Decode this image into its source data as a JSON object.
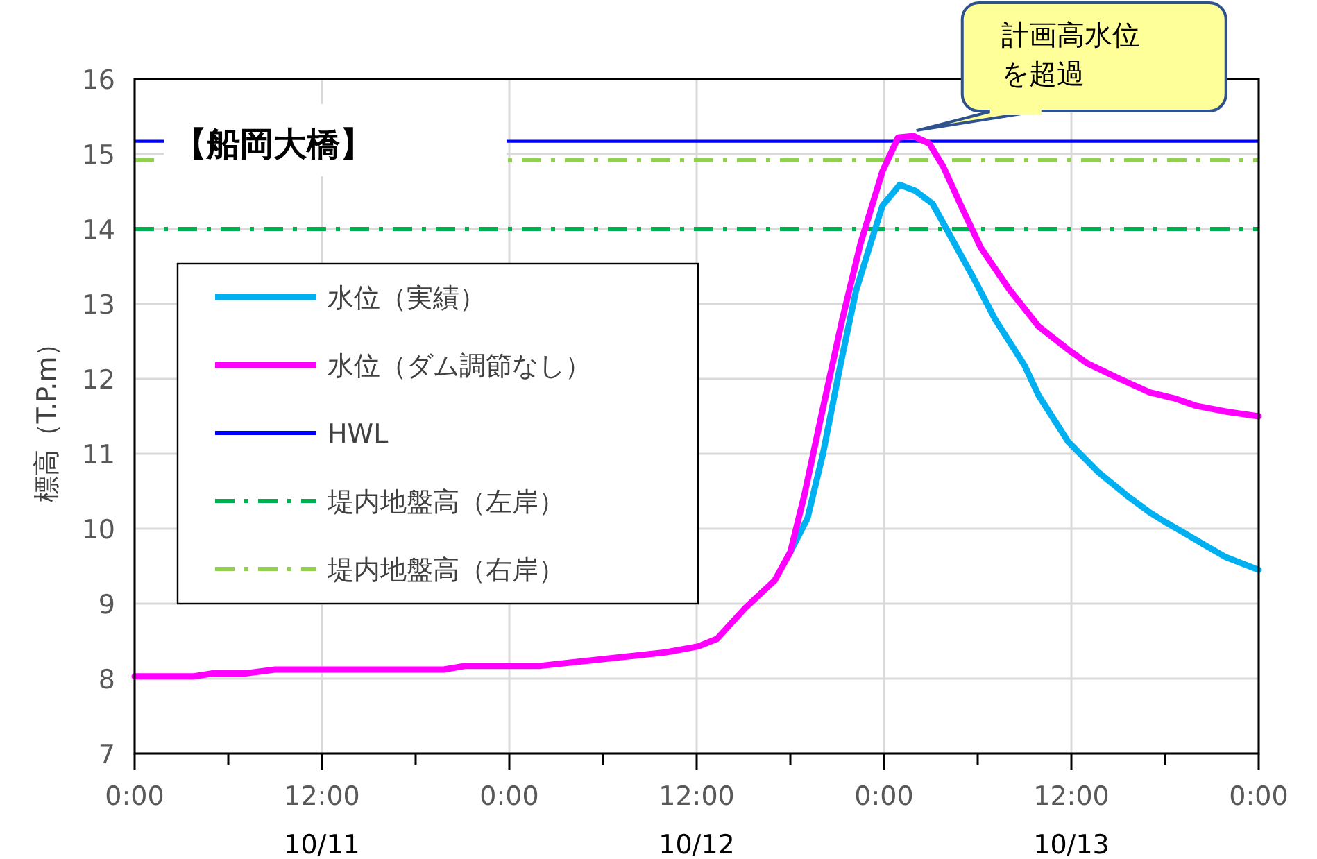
{
  "chart_data": {
    "type": "line",
    "title": "【船岡大橋】",
    "ylabel": "標高（T.P.m）",
    "xlim": [
      "--10-11T00:00",
      "--10-14T00:00"
    ],
    "ylim": [
      7,
      16
    ],
    "xticks": [
      {
        "value": "--10-11T00:00",
        "label": "0:00"
      },
      {
        "value": "--10-11T06:00",
        "label": null
      },
      {
        "value": "--10-11T12:00",
        "label": "12:00\n10/11"
      },
      {
        "value": "--10-11T18:00",
        "label": null
      },
      {
        "value": "--10-12T00:00",
        "label": "0:00"
      },
      {
        "value": "--10-12T06:00",
        "label": null
      },
      {
        "value": "--10-12T12:00",
        "label": "12:00\n10/12"
      },
      {
        "value": "--10-12T18:00",
        "label": null
      },
      {
        "value": "--10-13T00:00",
        "label": "0:00"
      },
      {
        "value": "--10-13T06:00",
        "label": null
      },
      {
        "value": "--10-13T12:00",
        "label": "12:00\n10/13"
      },
      {
        "value": "--10-13T18:00",
        "label": null
      },
      {
        "value": "--10-14T00:00",
        "label": "0:00"
      }
    ],
    "yticks": [
      7,
      8,
      9,
      10,
      11,
      12,
      13,
      14,
      15,
      16
    ],
    "grid": true,
    "legend": "left",
    "series": [
      {
        "name": "水位（実績）",
        "color": "#00b0f0",
        "x": [
          "--10-12T18:00",
          "--10-12T19:06",
          "--10-12T20:06",
          "--10-12T21:12",
          "--10-12T22:12",
          "--10-12T23:06",
          "--10-12T23:54",
          "--10-13T01:00",
          "--10-13T02:00",
          "--10-13T03:06",
          "--10-13T04:24",
          "--10-13T05:48",
          "--10-13T07:06",
          "--10-13T09:00",
          "--10-13T09:54",
          "--10-13T11:48",
          "--10-13T13:42",
          "--10-13T15:42",
          "--10-13T17:00",
          "--10-13T18:00",
          "--10-13T19:06",
          "--10-13T20:24",
          "--10-13T21:54",
          "--10-14T00:00"
        ],
        "values": [
          9.69,
          10.14,
          11.01,
          12.18,
          13.17,
          13.78,
          14.31,
          14.59,
          14.51,
          14.34,
          13.85,
          13.32,
          12.8,
          12.18,
          11.78,
          11.16,
          10.76,
          10.42,
          10.22,
          10.09,
          9.96,
          9.8,
          9.62,
          9.45
        ]
      },
      {
        "name": "水位（ダム調節なし）",
        "color": "#ff00ff",
        "x": [
          "--10-11T00:00",
          "--10-11T03:48",
          "--10-11T05:00",
          "--10-11T07:06",
          "--10-11T09:00",
          "--10-11T19:48",
          "--10-11T21:12",
          "--10-12T02:00",
          "--10-12T03:48",
          "--10-12T10:00",
          "--10-12T12:06",
          "--10-12T13:18",
          "--10-12T15:06",
          "--10-12T17:00",
          "--10-12T18:00",
          "--10-12T18:54",
          "--10-12T20:06",
          "--10-12T21:18",
          "--10-12T22:30",
          "--10-12T23:54",
          "--10-13T00:54",
          "--10-13T01:54",
          "--10-13T02:54",
          "--10-13T03:48",
          "--10-13T05:00",
          "--10-13T06:12",
          "--10-13T08:00",
          "--10-13T09:54",
          "--10-13T11:48",
          "--10-13T13:00",
          "--10-13T15:06",
          "--10-13T17:00",
          "--10-13T18:36",
          "--10-13T20:00",
          "--10-13T22:00",
          "--10-14T00:00"
        ],
        "values": [
          8.03,
          8.03,
          8.07,
          8.07,
          8.12,
          8.12,
          8.17,
          8.17,
          8.21,
          8.35,
          8.43,
          8.53,
          8.94,
          9.31,
          9.69,
          10.45,
          11.62,
          12.77,
          13.81,
          14.77,
          15.22,
          15.24,
          15.14,
          14.83,
          14.28,
          13.75,
          13.2,
          12.7,
          12.39,
          12.21,
          12.0,
          11.82,
          11.74,
          11.64,
          11.56,
          11.5
        ]
      }
    ],
    "ref_lines": [
      {
        "axis": "y",
        "value": 15.17,
        "label": "HWL",
        "color": "#0000ff",
        "line_style": "solid"
      },
      {
        "axis": "y",
        "value": 14.0,
        "label": "堤内地盤高（左岸）",
        "color": "#00b050",
        "line_style": "dashdot"
      },
      {
        "axis": "y",
        "value": 14.92,
        "label": "堤内地盤高（右岸）",
        "color": "#92d050",
        "line_style": "dashdot"
      }
    ],
    "annotations": [
      {
        "text": "計画高水位を超過",
        "x": "--10-13T01:54",
        "y": 15.24
      }
    ]
  }
}
